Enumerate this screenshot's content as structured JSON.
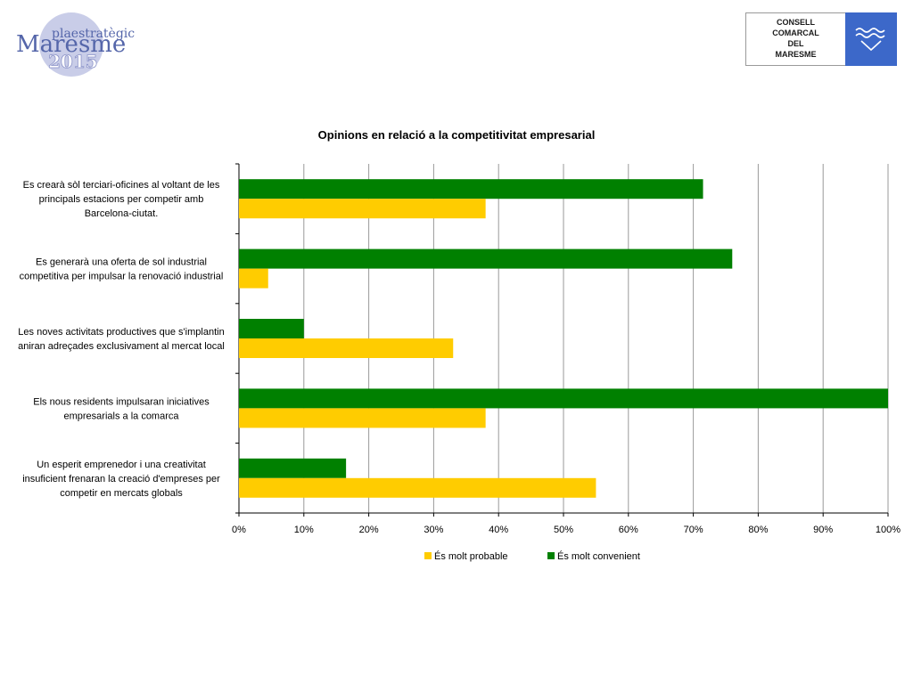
{
  "header": {
    "brand_small": "plaestratègic",
    "brand_big": "Maresme",
    "brand_year": "2015",
    "council_lines": [
      "CONSELL",
      "COMARCAL",
      "DEL",
      "MARESME"
    ]
  },
  "colors": {
    "probable": "#ffcc00",
    "convenient": "#008000",
    "grid": "#9a9a9a",
    "logo_circle": "#c9cde8",
    "logo_text": "#5566aa",
    "council_blue": "#3c68c9"
  },
  "chart_data": {
    "type": "bar",
    "orientation": "horizontal",
    "title": "Opinions en relació a la competitivitat empresarial",
    "categories": [
      "Es crearà sòl terciari-oficines al voltant de les principals estacions per competir amb Barcelona-ciutat.",
      "Es generarà una oferta de sol industrial competitiva per impulsar la renovació industrial",
      "Les noves activitats productives que s'implantin aniran adreçades exclusivament al mercat local",
      "Els nous residents impulsaran iniciatives empresarials a la comarca",
      "Un esperit emprenedor i una creativitat insuficient frenaran la creació d'empreses per competir en mercats globals"
    ],
    "category_lines": [
      [
        "Es crearà sòl terciari-oficines al voltant de les",
        "principals estacions per competir amb",
        "Barcelona-ciutat."
      ],
      [
        "Es generarà una oferta de sol industrial",
        "competitiva per impulsar la renovació industrial"
      ],
      [
        "Les noves activitats productives que s'implantin",
        "aniran adreçades exclusivament al mercat local"
      ],
      [
        "Els nous residents impulsaran iniciatives",
        "empresarials a la comarca"
      ],
      [
        "Un esperit emprenedor i una creativitat",
        "insuficient frenaran la creació d'empreses per",
        "competir en mercats globals"
      ]
    ],
    "series": [
      {
        "name": "És molt probable",
        "values": [
          38,
          4.5,
          33,
          38,
          55
        ]
      },
      {
        "name": "És molt convenient",
        "values": [
          71.5,
          76,
          10,
          100,
          16.5
        ]
      }
    ],
    "xlim": [
      0,
      100
    ],
    "x_ticks": [
      "0%",
      "10%",
      "20%",
      "30%",
      "40%",
      "50%",
      "60%",
      "70%",
      "80%",
      "90%",
      "100%"
    ],
    "grid": true,
    "legend_position": "bottom"
  }
}
